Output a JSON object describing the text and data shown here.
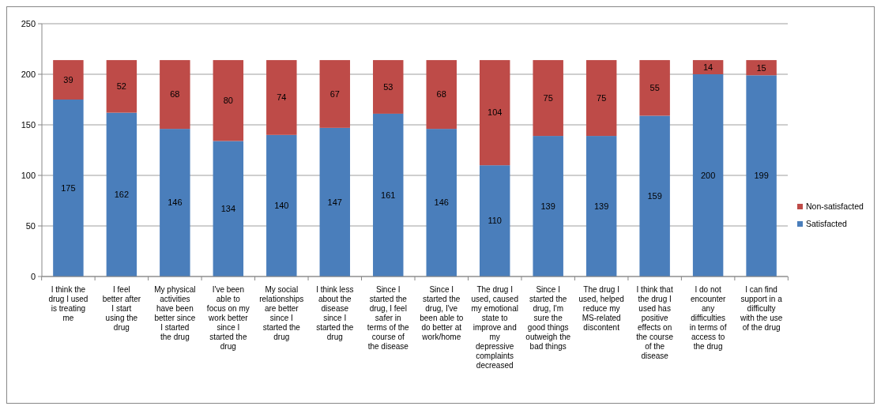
{
  "chart_data": {
    "type": "bar",
    "stacked": true,
    "categories": [
      "I think the drug I used is treating me",
      "I feel better after I start using the drug",
      "My physical activities have been better since I started the drug",
      "I've been able to focus on my work better since I started the drug",
      "My social relationships are better since I started the drug",
      "I think less about the disease since I started the drug",
      "Since I started the drug, I feel safer in terms of the course of the disease",
      "Since I started the drug, I've been able to do better at work/home",
      "The drug I used, caused my emotional state to improve and my depressive complaints decreased",
      "Since I started the drug, I'm sure the good things outweigh the bad things",
      "The drug I used, helped reduce my MS-related discontent",
      "I think that the drug I used has positive effects on the course of the disease",
      "I do not encounter any difficulties in terms of access to the drug",
      "I can find support in a difficulty with the use of the drug"
    ],
    "series": [
      {
        "name": "Satisfacted",
        "color": "#4a7ebb",
        "values": [
          175,
          162,
          146,
          134,
          140,
          147,
          161,
          146,
          110,
          139,
          139,
          159,
          200,
          199
        ]
      },
      {
        "name": "Non-satisfacted",
        "color": "#be4b48",
        "values": [
          39,
          52,
          68,
          80,
          74,
          67,
          53,
          68,
          104,
          75,
          75,
          55,
          14,
          15
        ]
      }
    ],
    "ylim": [
      0,
      250
    ],
    "yticks": [
      0,
      50,
      100,
      150,
      200,
      250
    ],
    "grid": "y",
    "legend": "right",
    "data_labels": true
  }
}
